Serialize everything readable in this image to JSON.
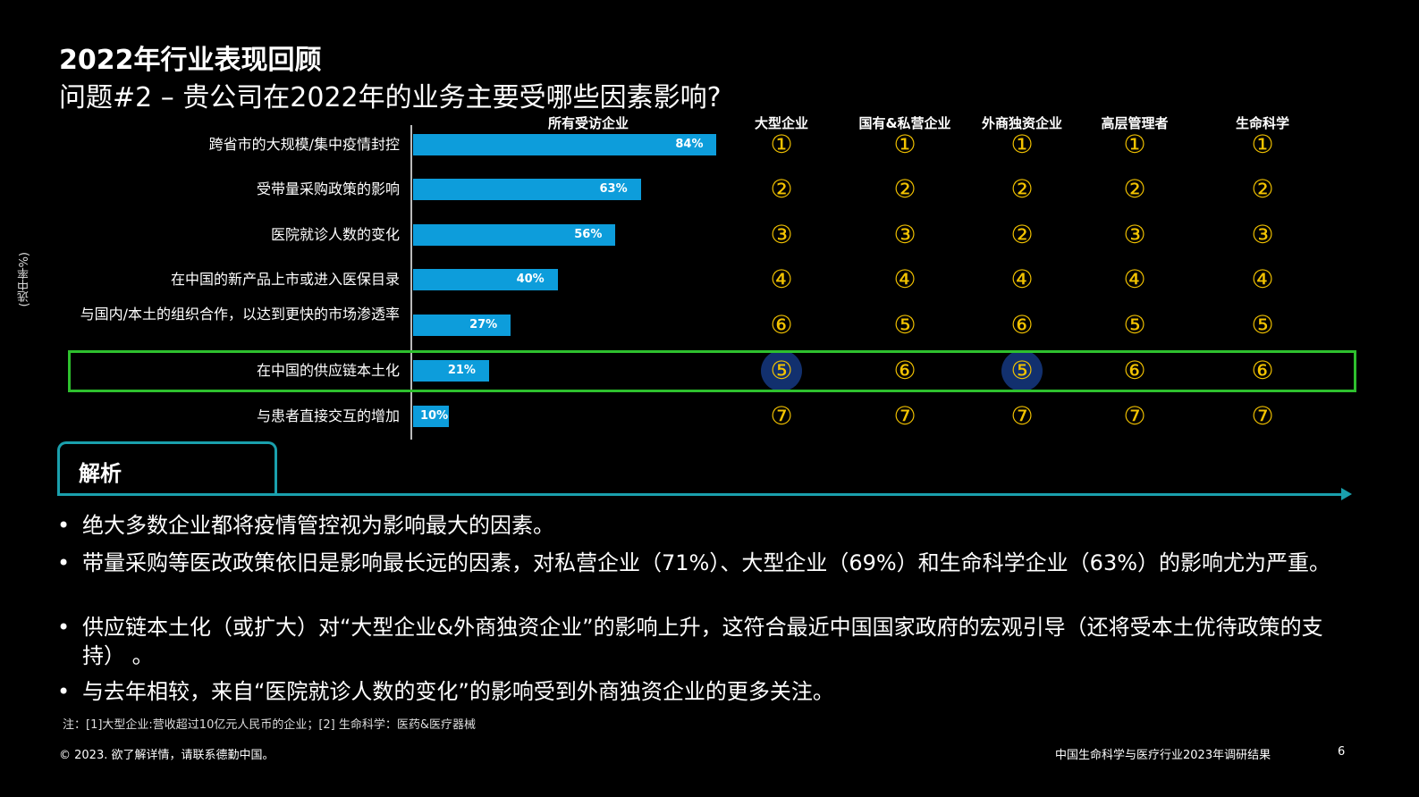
{
  "header": {
    "title": "2022年行业表现回顾",
    "subtitle": "问题#2 – 贵公司在2022年的业务主要受哪些因素影响?"
  },
  "chart_data": {
    "type": "bar",
    "orientation": "horizontal",
    "ylabel": "(选中率%)",
    "series": [
      {
        "name": "所有受访企业",
        "values": [
          84,
          63,
          56,
          40,
          27,
          21,
          10
        ]
      }
    ],
    "categories": [
      "跨省市的大规模/集中疫情封控",
      "受带量采购政策的影响",
      "医院就诊人数的变化",
      "在中国的新产品上市或进入医保目录",
      "与国内/本土的组织合作，以达到更快的市场渗透率",
      "在中国的供应链本土化",
      "与患者直接交互的增加"
    ],
    "value_labels": [
      "84%",
      "63%",
      "56%",
      "40%",
      "27%",
      "21%",
      "10%"
    ],
    "xlim": [
      0,
      100
    ],
    "rank_table": {
      "columns": [
        "大型企业",
        "国有&私营企业",
        "外商独资企业",
        "高层管理者",
        "生命科学"
      ],
      "ranks": [
        [
          "①",
          "①",
          "①",
          "①",
          "①"
        ],
        [
          "②",
          "②",
          "②",
          "②",
          "②"
        ],
        [
          "③",
          "③",
          "②",
          "③",
          "③"
        ],
        [
          "④",
          "④",
          "④",
          "④",
          "④"
        ],
        [
          "⑥",
          "⑤",
          "⑥",
          "⑤",
          "⑤"
        ],
        [
          "⑤",
          "⑥",
          "⑤",
          "⑥",
          "⑥"
        ],
        [
          "⑦",
          "⑦",
          "⑦",
          "⑦",
          "⑦"
        ]
      ],
      "highlighted_row": 5,
      "highlighted_cells": [
        [
          5,
          0
        ],
        [
          5,
          2
        ]
      ]
    }
  },
  "analysis": {
    "title": "解析",
    "bullets": [
      "绝大多数企业都将疫情管控视为影响最大的因素。",
      "带量采购等医改政策依旧是影响最长远的因素，对私营企业（71%）、大型企业（69%）和生命科学企业（63%）的影响尤为严重。",
      "供应链本土化（或扩大）对“大型企业&外商独资企业”的影响上升，这符合最近中国国家政府的宏观引导（还将受本土优待政策的支持） 。",
      "与去年相较，来自“医院就诊人数的变化”的影响受到外商独资企业的更多关注。"
    ]
  },
  "note": "注：[1]大型企业:营收超过10亿元人民币的企业；[2] 生命科学：医药&医疗器械",
  "footer": {
    "copyright": "© 2023. 欲了解详情，请联系德勤中国。",
    "report_title": "中国生命科学与医疗行业2023年调研结果",
    "page_number": "6"
  },
  "colors": {
    "bar": "#0d9ddb",
    "rank": "#f3c300",
    "highlight_box": "#2ec02e",
    "accent": "#1aa0ad"
  }
}
